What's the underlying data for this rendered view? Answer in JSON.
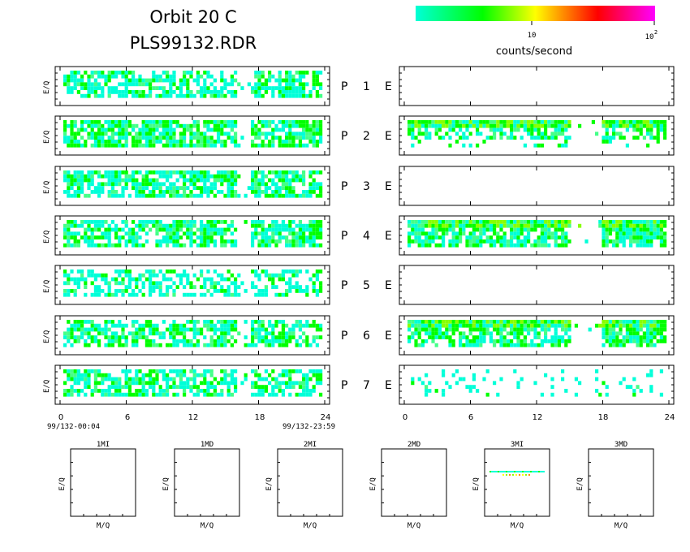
{
  "header": {
    "title_line1": "Orbit 20 C",
    "title_line2": "PLS99132.RDR"
  },
  "colorbar": {
    "label": "counts/second",
    "tick_10": "10",
    "tick_100_base": "10",
    "tick_100_exp": "2",
    "scale": "log",
    "range": [
      1,
      100
    ],
    "colors": [
      "#00ffd8",
      "#00ff00",
      "#ffff00",
      "#ff8800",
      "#ff0000",
      "#ff00ff"
    ]
  },
  "rows": [
    {
      "p_label": "P",
      "e_label": "E",
      "index": "1",
      "ylabel": "E/Q"
    },
    {
      "p_label": "P",
      "e_label": "E",
      "index": "2",
      "ylabel": "E/Q"
    },
    {
      "p_label": "P",
      "e_label": "E",
      "index": "3",
      "ylabel": "E/Q"
    },
    {
      "p_label": "P",
      "e_label": "E",
      "index": "4",
      "ylabel": "E/Q"
    },
    {
      "p_label": "P",
      "e_label": "E",
      "index": "5",
      "ylabel": "E/Q"
    },
    {
      "p_label": "P",
      "e_label": "E",
      "index": "6",
      "ylabel": "E/Q"
    },
    {
      "p_label": "P",
      "e_label": "E",
      "index": "7",
      "ylabel": "E/Q"
    }
  ],
  "time_axis": {
    "ticks": [
      "0",
      "6",
      "12",
      "18",
      "24"
    ],
    "start_label": "99/132-00:04",
    "end_label": "99/132-23:59"
  },
  "bottom_panels": [
    {
      "title": "1MI",
      "xlabel": "M/Q",
      "ylabel": "E/Q"
    },
    {
      "title": "1MD",
      "xlabel": "M/Q",
      "ylabel": "E/Q"
    },
    {
      "title": "2MI",
      "xlabel": "M/Q",
      "ylabel": "E/Q"
    },
    {
      "title": "2MD",
      "xlabel": "M/Q",
      "ylabel": "E/Q"
    },
    {
      "title": "3MI",
      "xlabel": "M/Q",
      "ylabel": "E/Q"
    },
    {
      "title": "3MD",
      "xlabel": "M/Q",
      "ylabel": "E/Q"
    }
  ],
  "chart_data": {
    "type": "heatmap",
    "x_range_hours": [
      0,
      24
    ],
    "color_scale": "counts/second (log)",
    "p_panels_populated": [
      true,
      true,
      true,
      true,
      true,
      true,
      true
    ],
    "e_panels_populated": [
      false,
      true,
      false,
      true,
      false,
      true,
      true
    ]
  }
}
